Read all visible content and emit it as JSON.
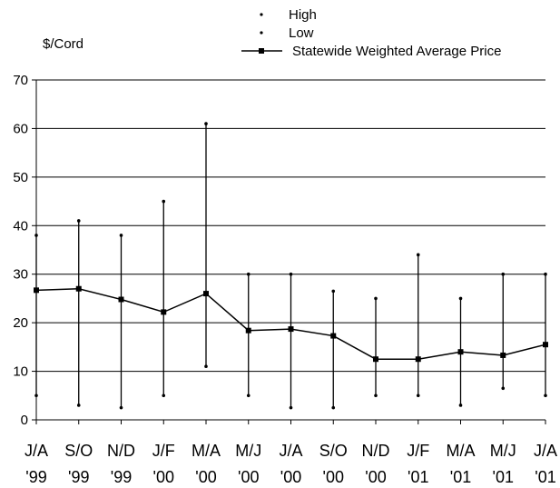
{
  "chart_data": {
    "type": "line",
    "ylabel": "$/Cord",
    "ylim": [
      0,
      70
    ],
    "yticks": [
      0,
      10,
      20,
      30,
      40,
      50,
      60,
      70
    ],
    "grid": true,
    "legend_position": "top",
    "categories": [
      {
        "line1": "J/A",
        "line2": "'99"
      },
      {
        "line1": "S/O",
        "line2": "'99"
      },
      {
        "line1": "N/D",
        "line2": "'99"
      },
      {
        "line1": "J/F",
        "line2": "'00"
      },
      {
        "line1": "M/A",
        "line2": "'00"
      },
      {
        "line1": "M/J",
        "line2": "'00"
      },
      {
        "line1": "J/A",
        "line2": "'00"
      },
      {
        "line1": "S/O",
        "line2": "'00"
      },
      {
        "line1": "N/D",
        "line2": "'00"
      },
      {
        "line1": "J/F",
        "line2": "'01"
      },
      {
        "line1": "M/A",
        "line2": "'01"
      },
      {
        "line1": "M/J",
        "line2": "'01"
      },
      {
        "line1": "J/A",
        "line2": "'01"
      }
    ],
    "series": [
      {
        "name": "High",
        "marker": "dot",
        "values": [
          38,
          41,
          38,
          45,
          61,
          30,
          30,
          26.5,
          25,
          34,
          25,
          30,
          30
        ]
      },
      {
        "name": "Low",
        "marker": "dot",
        "values": [
          5,
          3,
          2.5,
          5,
          11,
          5,
          2.5,
          2.5,
          5,
          5,
          3,
          6.5,
          5
        ]
      },
      {
        "name": "Statewide Weighted Average Price",
        "marker": "square-line",
        "values": [
          26.7,
          27,
          24.8,
          22.2,
          26,
          18.4,
          18.7,
          17.3,
          12.5,
          12.5,
          14,
          13.3,
          15.5
        ]
      }
    ]
  },
  "colors": {
    "ink": "#000000",
    "background": "#ffffff"
  }
}
